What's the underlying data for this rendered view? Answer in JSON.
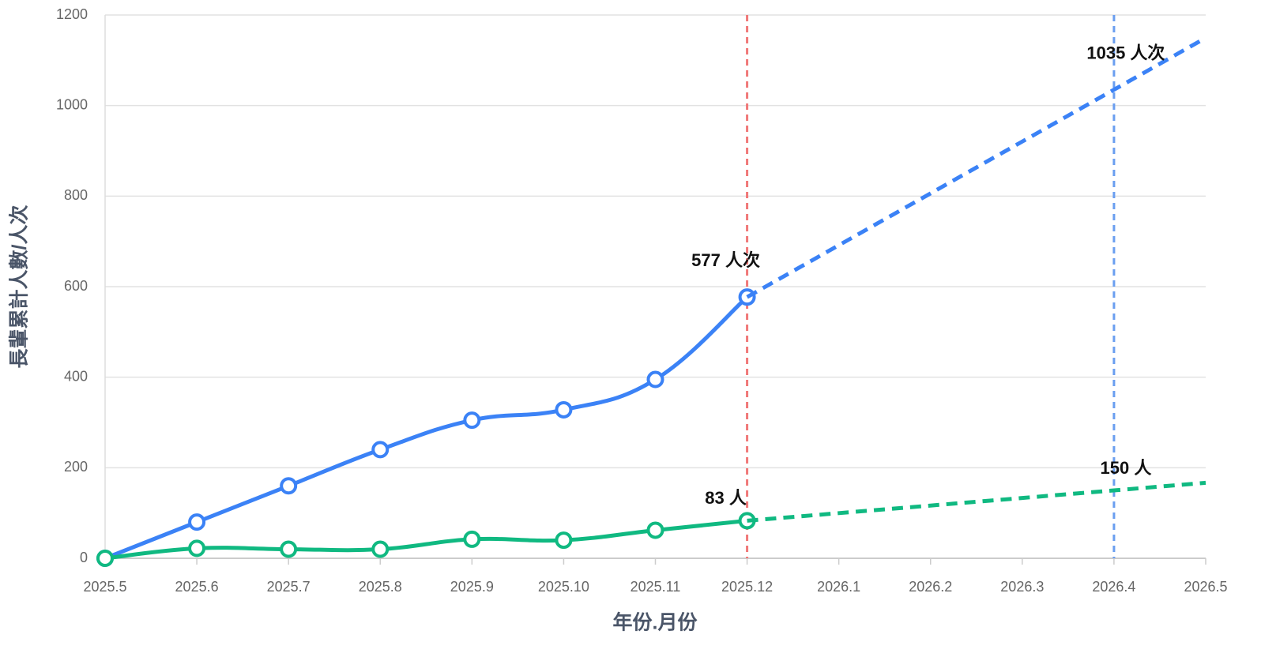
{
  "chart_data": {
    "type": "line",
    "x_label": "年份.月份",
    "y_label": "長輩累計人數/人次",
    "categories": [
      "2025.5",
      "2025.6",
      "2025.7",
      "2025.8",
      "2025.9",
      "2025.10",
      "2025.11",
      "2025.12",
      "2026.1",
      "2026.2",
      "2026.3",
      "2026.4",
      "2026.5"
    ],
    "ylim": [
      0,
      1200
    ],
    "yticks": [
      0,
      200,
      400,
      600,
      800,
      1000,
      1200
    ],
    "grid": true,
    "series": [
      {
        "color": "#3b82f6",
        "smooth": true,
        "markers": true,
        "values": [
          0,
          80,
          160,
          240,
          305,
          328,
          395,
          577,
          null,
          null,
          null,
          null,
          null
        ],
        "value_labels": [
          null,
          null,
          null,
          null,
          null,
          null,
          null,
          "577 人次",
          null,
          null,
          null,
          null,
          null
        ]
      },
      {
        "color": "#3b82f6",
        "dashed": true,
        "values": [
          null,
          null,
          null,
          null,
          null,
          null,
          null,
          577,
          691.5,
          806,
          920.5,
          1035,
          1149.5
        ],
        "value_labels": [
          null,
          null,
          null,
          null,
          null,
          null,
          null,
          null,
          null,
          null,
          null,
          "1035 人次",
          null
        ]
      },
      {
        "color": "#10b981",
        "smooth": true,
        "markers": true,
        "values": [
          0,
          22,
          20,
          20,
          42,
          40,
          62,
          83,
          null,
          null,
          null,
          null,
          null
        ],
        "value_labels": [
          null,
          null,
          null,
          null,
          null,
          null,
          null,
          "83 人",
          null,
          null,
          null,
          null,
          null
        ]
      },
      {
        "color": "#10b981",
        "dashed": true,
        "values": [
          null,
          null,
          null,
          null,
          null,
          null,
          null,
          83,
          99.75,
          116.5,
          133.25,
          150,
          166.75
        ],
        "value_labels": [
          null,
          null,
          null,
          null,
          null,
          null,
          null,
          null,
          null,
          null,
          null,
          "150 人",
          null
        ]
      }
    ],
    "vlines": [
      {
        "x": "2025.12",
        "color": "#f07878"
      },
      {
        "x": "2026.4",
        "color": "#6a9ef0"
      }
    ]
  }
}
